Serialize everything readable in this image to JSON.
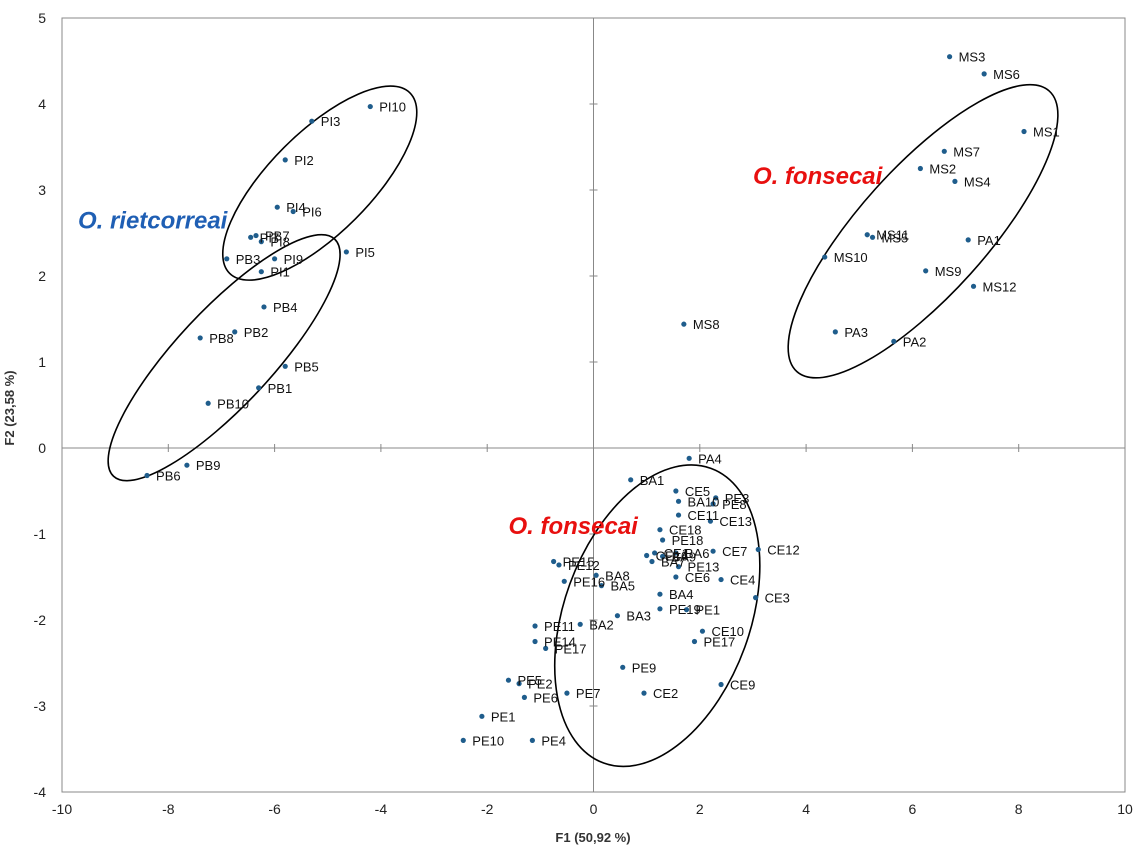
{
  "chart_data": {
    "type": "scatter",
    "title": "",
    "xlabel": "F1 (50,92 %)",
    "ylabel": "F2 (23,58 %)",
    "xlim": [
      -10,
      10
    ],
    "ylim": [
      -4,
      5
    ],
    "xticks": [
      -10,
      -8,
      -6,
      -4,
      -2,
      0,
      2,
      4,
      6,
      8,
      10
    ],
    "yticks": [
      -4,
      -3,
      -2,
      -1,
      0,
      1,
      2,
      3,
      4,
      5
    ],
    "grid": false,
    "zero_lines": true,
    "point_color": "#1f5d8c",
    "points": [
      {
        "label": "PI10",
        "x": -4.2,
        "y": 3.97
      },
      {
        "label": "PI3",
        "x": -5.3,
        "y": 3.8
      },
      {
        "label": "PI2",
        "x": -5.8,
        "y": 3.35
      },
      {
        "label": "PI4",
        "x": -5.95,
        "y": 2.8
      },
      {
        "label": "PI6",
        "x": -5.65,
        "y": 2.75
      },
      {
        "label": "PB7",
        "x": -6.35,
        "y": 2.47
      },
      {
        "label": "PI7",
        "x": -6.45,
        "y": 2.45
      },
      {
        "label": "PI8",
        "x": -6.25,
        "y": 2.4
      },
      {
        "label": "PI5",
        "x": -4.65,
        "y": 2.28
      },
      {
        "label": "PI9",
        "x": -6.0,
        "y": 2.2
      },
      {
        "label": "PB3",
        "x": -6.9,
        "y": 2.2
      },
      {
        "label": "PI1",
        "x": -6.25,
        "y": 2.05
      },
      {
        "label": "PB4",
        "x": -6.2,
        "y": 1.64
      },
      {
        "label": "PB2",
        "x": -6.75,
        "y": 1.35
      },
      {
        "label": "PB8",
        "x": -7.4,
        "y": 1.28
      },
      {
        "label": "PB5",
        "x": -5.8,
        "y": 0.95
      },
      {
        "label": "PB1",
        "x": -6.3,
        "y": 0.7
      },
      {
        "label": "PB10",
        "x": -7.25,
        "y": 0.52
      },
      {
        "label": "PB9",
        "x": -7.65,
        "y": -0.2
      },
      {
        "label": "PB6",
        "x": -8.4,
        "y": -0.32
      },
      {
        "label": "MS3",
        "x": 6.7,
        "y": 4.55
      },
      {
        "label": "MS6",
        "x": 7.35,
        "y": 4.35
      },
      {
        "label": "MS1",
        "x": 8.1,
        "y": 3.68
      },
      {
        "label": "MS7",
        "x": 6.6,
        "y": 3.45
      },
      {
        "label": "MS2",
        "x": 6.15,
        "y": 3.25
      },
      {
        "label": "MS4",
        "x": 6.8,
        "y": 3.1
      },
      {
        "label": "MS11",
        "x": 5.15,
        "y": 2.48
      },
      {
        "label": "MS5",
        "x": 5.25,
        "y": 2.45
      },
      {
        "label": "PA1",
        "x": 7.05,
        "y": 2.42
      },
      {
        "label": "MS10",
        "x": 4.35,
        "y": 2.22
      },
      {
        "label": "MS9",
        "x": 6.25,
        "y": 2.06
      },
      {
        "label": "MS12",
        "x": 7.15,
        "y": 1.88
      },
      {
        "label": "MS8",
        "x": 1.7,
        "y": 1.44
      },
      {
        "label": "PA3",
        "x": 4.55,
        "y": 1.35
      },
      {
        "label": "PA2",
        "x": 5.65,
        "y": 1.24
      },
      {
        "label": "PA4",
        "x": 1.8,
        "y": -0.12
      },
      {
        "label": "BA1",
        "x": 0.7,
        "y": -0.37
      },
      {
        "label": "CE5",
        "x": 1.55,
        "y": -0.5
      },
      {
        "label": "PE3",
        "x": 2.3,
        "y": -0.58
      },
      {
        "label": "BA10",
        "x": 1.6,
        "y": -0.62
      },
      {
        "label": "PE8",
        "x": 2.25,
        "y": -0.65
      },
      {
        "label": "CE11",
        "x": 1.6,
        "y": -0.78
      },
      {
        "label": "CE13",
        "x": 2.2,
        "y": -0.85
      },
      {
        "label": "CE18",
        "x": 1.25,
        "y": -0.95
      },
      {
        "label": "PE18",
        "x": 1.3,
        "y": -1.07
      },
      {
        "label": "CE12",
        "x": 3.1,
        "y": -1.18
      },
      {
        "label": "CE7",
        "x": 2.25,
        "y": -1.2
      },
      {
        "label": "BA6",
        "x": 1.55,
        "y": -1.22
      },
      {
        "label": "CE1",
        "x": 1.15,
        "y": -1.22
      },
      {
        "label": "BA9",
        "x": 1.3,
        "y": -1.26
      },
      {
        "label": "CE16",
        "x": 1.0,
        "y": -1.25
      },
      {
        "label": "BA7",
        "x": 1.1,
        "y": -1.32
      },
      {
        "label": "PE13",
        "x": 1.6,
        "y": -1.38
      },
      {
        "label": "PE15",
        "x": -0.75,
        "y": -1.32
      },
      {
        "label": "PE12",
        "x": -0.65,
        "y": -1.36
      },
      {
        "label": "BA8",
        "x": 0.05,
        "y": -1.48
      },
      {
        "label": "PE16",
        "x": -0.55,
        "y": -1.55
      },
      {
        "label": "CE6",
        "x": 1.55,
        "y": -1.5
      },
      {
        "label": "CE4",
        "x": 2.4,
        "y": -1.53
      },
      {
        "label": "BA5",
        "x": 0.15,
        "y": -1.6
      },
      {
        "label": "BA4",
        "x": 1.25,
        "y": -1.7
      },
      {
        "label": "CE3",
        "x": 3.05,
        "y": -1.74
      },
      {
        "label": "PE19",
        "x": 1.25,
        "y": -1.87
      },
      {
        "label": "PE1",
        "x": 1.75,
        "y": -1.88
      },
      {
        "label": "BA3",
        "x": 0.45,
        "y": -1.95
      },
      {
        "label": "BA2",
        "x": -0.25,
        "y": -2.05
      },
      {
        "label": "PE11",
        "x": -1.1,
        "y": -2.07
      },
      {
        "label": "CE10",
        "x": 2.05,
        "y": -2.13
      },
      {
        "label": "PE14",
        "x": -1.1,
        "y": -2.25
      },
      {
        "label": "PE17",
        "x": 1.9,
        "y": -2.25
      },
      {
        "label": "PE17",
        "x": -0.9,
        "y": -2.33
      },
      {
        "label": "PE9",
        "x": 0.55,
        "y": -2.55
      },
      {
        "label": "PE5",
        "x": -1.6,
        "y": -2.7
      },
      {
        "label": "PE2",
        "x": -1.4,
        "y": -2.74
      },
      {
        "label": "CE9",
        "x": 2.4,
        "y": -2.75
      },
      {
        "label": "CE2",
        "x": 0.95,
        "y": -2.85
      },
      {
        "label": "PE7",
        "x": -0.5,
        "y": -2.85
      },
      {
        "label": "PE6",
        "x": -1.3,
        "y": -2.9
      },
      {
        "label": "PE1",
        "x": -2.1,
        "y": -3.12
      },
      {
        "label": "PE10",
        "x": -2.45,
        "y": -3.4
      },
      {
        "label": "PE4",
        "x": -1.15,
        "y": -3.4
      }
    ],
    "annotations": [
      {
        "text": "O. rietcorreai",
        "x": -9.7,
        "y": 2.55,
        "color": "#1f5fb4"
      },
      {
        "text": "O. fonsecai",
        "x": 3.0,
        "y": 3.07,
        "color": "#e8100f"
      },
      {
        "text": "O. fonsecai",
        "x": -1.6,
        "y": -1.0,
        "color": "#e8100f"
      }
    ],
    "ellipses": [
      {
        "cx": -5.15,
        "cy": 3.08,
        "rx": 2.4,
        "ry": 0.95,
        "angle": -45
      },
      {
        "cx": -6.95,
        "cy": 1.05,
        "rx": 3.05,
        "ry": 0.9,
        "angle": -47
      },
      {
        "cx": 6.2,
        "cy": 2.52,
        "rx": 3.55,
        "ry": 1.2,
        "angle": -48
      },
      {
        "cx": 1.2,
        "cy": -1.95,
        "rx": 2.95,
        "ry": 1.75,
        "angle": -70
      }
    ]
  }
}
